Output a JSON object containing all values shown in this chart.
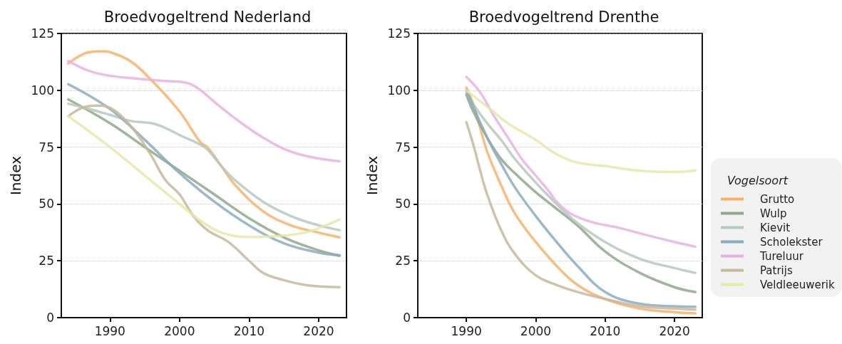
{
  "chart_data": [
    {
      "type": "line",
      "title": "Broedvogeltrend Nederland",
      "ylabel": "Index",
      "xlim": [
        1983,
        2024
      ],
      "xticks": [
        1990,
        2000,
        2010,
        2020
      ],
      "ylim": [
        0,
        125
      ],
      "yticks": [
        0,
        25,
        50,
        75,
        100,
        125
      ],
      "grid": "y",
      "legend": false,
      "marker": "none",
      "line_style": "solid",
      "series": [
        {
          "color": "#f7b26b",
          "x": [
            1984,
            1987,
            1989,
            1990,
            1993,
            1996,
            2000,
            2003,
            2004,
            2006,
            2008,
            2012,
            2016,
            2020,
            2023
          ],
          "values": [
            111.8,
            116.8,
            117.2,
            116.8,
            112.7,
            104.3,
            90.7,
            77.1,
            75,
            66.7,
            58.3,
            46.8,
            40.6,
            37.4,
            35.3
          ]
        },
        {
          "color": "#8fa88a",
          "x": [
            1984,
            1990,
            1995,
            2000,
            2005,
            2010,
            2015,
            2020,
            2023
          ],
          "values": [
            96,
            85.5,
            75,
            64.6,
            54.2,
            43.7,
            35.3,
            29.6,
            27.2
          ]
        },
        {
          "color": "#b7c9bc",
          "x": [
            1984,
            1987,
            1990,
            1993,
            1996,
            1998,
            2000,
            2003,
            2004,
            2006,
            2008,
            2012,
            2016,
            2020,
            2023
          ],
          "values": [
            94.1,
            91.8,
            89.2,
            86.5,
            85.5,
            83.4,
            80.3,
            76.1,
            74,
            66.7,
            60.4,
            51,
            44.7,
            40.6,
            38.5
          ]
        },
        {
          "color": "#89adbe",
          "x": [
            1984,
            1990,
            1995,
            2000,
            2005,
            2010,
            2015,
            2020,
            2023
          ],
          "values": [
            102.7,
            91.8,
            78.2,
            63.6,
            51,
            40.6,
            32.7,
            28.6,
            27.5
          ]
        },
        {
          "color": "#e6b3e0",
          "x": [
            1984,
            1987,
            1990,
            1994,
            1998,
            2001,
            2003,
            2005,
            2008,
            2012,
            2016,
            2020,
            2023
          ],
          "values": [
            112.9,
            108.5,
            106.4,
            105.1,
            104.1,
            103.3,
            100.1,
            94.9,
            87.6,
            79.2,
            73,
            70,
            68.8
          ]
        },
        {
          "color": "#c9b89c",
          "x": [
            1984,
            1986,
            1988,
            1990,
            1992,
            1994,
            1996,
            1998,
            2000,
            2002,
            2004,
            2007,
            2010,
            2012,
            2015,
            2018,
            2021,
            2023
          ],
          "values": [
            88.6,
            92.3,
            93.3,
            92.3,
            87.6,
            80.3,
            70.9,
            60.4,
            54.2,
            44.7,
            38.5,
            33.3,
            25,
            19.7,
            16.5,
            14.4,
            13.6,
            13.4
          ]
        },
        {
          "color": "#e6e8a8",
          "x": [
            1984,
            1990,
            1995,
            2000,
            2003,
            2006,
            2010,
            2014,
            2018,
            2021,
            2023
          ],
          "values": [
            88.6,
            75,
            62.5,
            50,
            42.7,
            37.4,
            35.5,
            35.9,
            37.4,
            40.6,
            43.2
          ]
        }
      ]
    },
    {
      "type": "line",
      "title": "Broedvogeltrend Drenthe",
      "ylabel": "Index",
      "xlim": [
        1983,
        2024
      ],
      "xticks": [
        1990,
        2000,
        2010,
        2020
      ],
      "ylim": [
        0,
        125
      ],
      "yticks": [
        0,
        25,
        50,
        75,
        100,
        125
      ],
      "grid": "y",
      "legend": "right",
      "legend_title": "Vogelsoort",
      "marker": "none",
      "line_style": "solid",
      "series": [
        {
          "name": "Grutto",
          "color": "#f7b26b",
          "x": [
            1990,
            1991,
            1992,
            1993,
            1995,
            1997,
            2000,
            2003,
            2006,
            2010,
            2015,
            2020,
            2023
          ],
          "values": [
            101.2,
            93.9,
            83.4,
            73,
            58.3,
            45.8,
            33.3,
            22.8,
            14.4,
            8.2,
            4,
            2.4,
            1.9
          ]
        },
        {
          "name": "Wulp",
          "color": "#8fa88a",
          "x": [
            1990,
            1991,
            1993,
            1995,
            1997,
            2000,
            2003,
            2006,
            2010,
            2015,
            2020,
            2023
          ],
          "values": [
            98.2,
            90.7,
            79.2,
            69.8,
            63.5,
            55.2,
            47.9,
            40.6,
            29.1,
            19.7,
            13.4,
            11.3
          ]
        },
        {
          "name": "Kievit",
          "color": "#b7c9bc",
          "x": [
            1990,
            1991,
            1993,
            1995,
            1997,
            2000,
            2003,
            2006,
            2010,
            2015,
            2020,
            2023
          ],
          "values": [
            99.6,
            93.9,
            85.5,
            78.2,
            69.8,
            59.4,
            50,
            41.6,
            33.3,
            25.9,
            21.8,
            19.7
          ]
        },
        {
          "name": "Scholekster",
          "color": "#89adbe",
          "x": [
            1990,
            1991,
            1993,
            1995,
            1997,
            2000,
            2003,
            2006,
            2010,
            2015,
            2020,
            2023
          ],
          "values": [
            100.1,
            92.8,
            79.2,
            67.7,
            57.3,
            44.7,
            33.3,
            22.8,
            11.3,
            6.1,
            5,
            4.8
          ]
        },
        {
          "name": "Tureluur",
          "color": "#e6b3e0",
          "x": [
            1990,
            1992,
            1994,
            1996,
            1998,
            2000,
            2002,
            2003,
            2005,
            2008,
            2012,
            2016,
            2020,
            2023
          ],
          "values": [
            105.9,
            99.1,
            88.6,
            79.2,
            69.8,
            62.5,
            55.2,
            51,
            45.8,
            42.1,
            39.5,
            36.3,
            33.3,
            31.2
          ]
        },
        {
          "name": "Patrijs",
          "color": "#c9b89c",
          "x": [
            1990,
            1991,
            1992,
            1993,
            1995,
            1997,
            2000,
            2003,
            2006,
            2010,
            2015,
            2020,
            2023
          ],
          "values": [
            86,
            76.1,
            64.6,
            54.2,
            38.5,
            28,
            18.6,
            14.4,
            11.3,
            8.2,
            5,
            4,
            3.5
          ]
        },
        {
          "name": "Veldleeuwerik",
          "color": "#e6e8a8",
          "x": [
            1990,
            1993,
            1996,
            2000,
            2003,
            2006,
            2010,
            2015,
            2020,
            2023
          ],
          "values": [
            99.9,
            92.8,
            85.5,
            78.2,
            71.9,
            68.2,
            66.7,
            64.6,
            64.1,
            64.8
          ]
        }
      ]
    }
  ]
}
